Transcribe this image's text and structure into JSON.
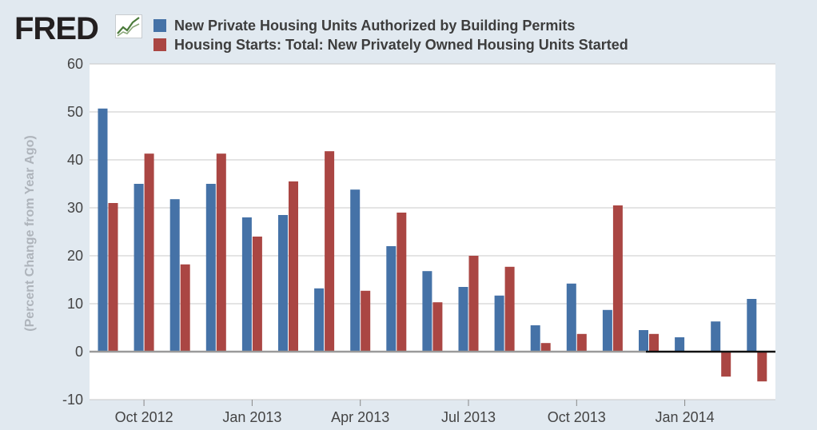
{
  "brand": {
    "logo_text": "FRED"
  },
  "chart_data": {
    "type": "bar",
    "ylabel": "(Percent Change from Year Ago)",
    "ylim": [
      -10,
      60
    ],
    "yticks": [
      -10,
      0,
      10,
      20,
      30,
      40,
      50,
      60
    ],
    "x_tick_labels": [
      "Oct 2012",
      "Jan 2013",
      "Apr 2013",
      "Jul 2013",
      "Oct 2013",
      "Jan 2014"
    ],
    "x_tick_month_index": [
      1,
      4,
      7,
      10,
      13,
      16
    ],
    "categories": [
      "Sep 2012",
      "Oct 2012",
      "Nov 2012",
      "Dec 2012",
      "Jan 2013",
      "Feb 2013",
      "Mar 2013",
      "Apr 2013",
      "May 2013",
      "Jun 2013",
      "Jul 2013",
      "Aug 2013",
      "Sep 2013",
      "Oct 2013",
      "Nov 2013",
      "Dec 2013",
      "Jan 2014",
      "Feb 2014",
      "Mar 2014"
    ],
    "series": [
      {
        "name": "New Private Housing Units Authorized by Building Permits",
        "color": "#4572a7",
        "values": [
          50.7,
          35.0,
          31.8,
          35.0,
          28.0,
          28.5,
          13.2,
          33.8,
          22.0,
          16.8,
          13.5,
          11.7,
          5.5,
          14.2,
          8.7,
          4.5,
          3.0,
          6.3,
          11.0
        ]
      },
      {
        "name": "Housing Starts: Total: New Privately Owned Housing Units Started",
        "color": "#aa4643",
        "values": [
          31.0,
          41.3,
          18.2,
          41.3,
          24.0,
          35.5,
          41.8,
          12.7,
          29.0,
          10.3,
          20.0,
          17.7,
          1.8,
          3.7,
          30.5,
          3.7,
          null,
          -5.2,
          -6.2
        ]
      }
    ],
    "grid": true,
    "legend_position": "top"
  }
}
